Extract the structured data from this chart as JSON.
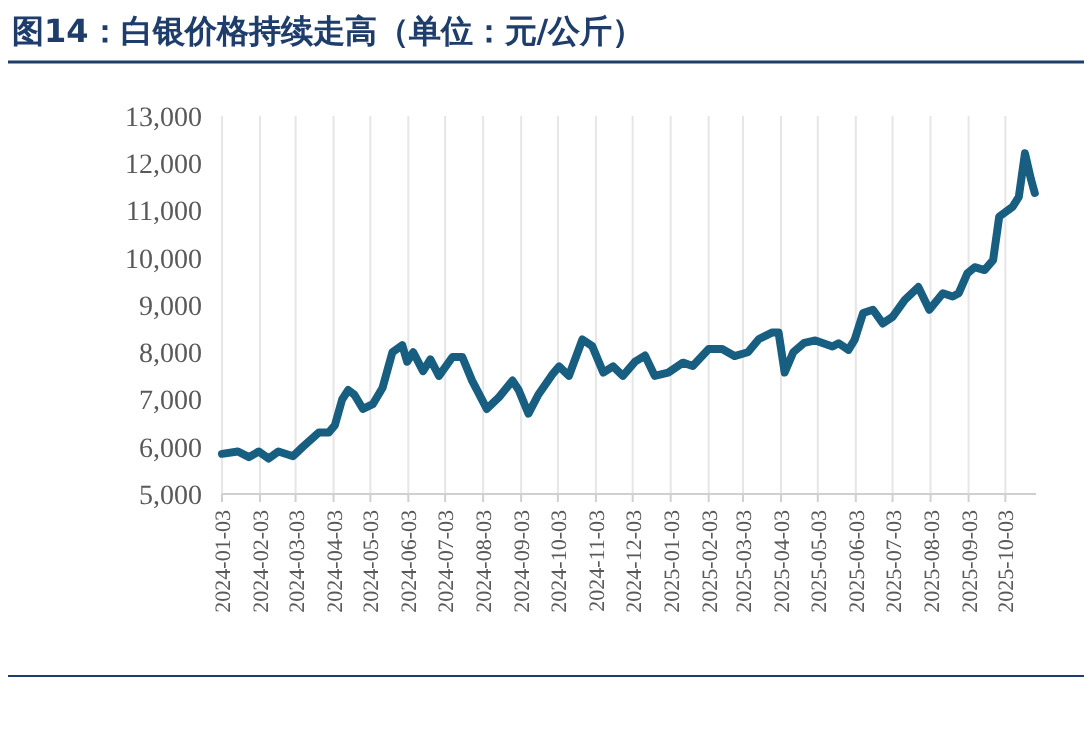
{
  "chart_data": {
    "type": "line",
    "title": "图14：白银价格持续走高（单位：元/公斤）",
    "x": [
      "2024-01-03",
      "2024-01-16",
      "2024-01-25",
      "2024-02-02",
      "2024-02-10",
      "2024-02-18",
      "2024-03-01",
      "2024-03-09",
      "2024-03-22",
      "2024-03-30",
      "2024-04-04",
      "2024-04-10",
      "2024-04-15",
      "2024-04-20",
      "2024-04-27",
      "2024-05-05",
      "2024-05-13",
      "2024-05-21",
      "2024-05-29",
      "2024-06-02",
      "2024-06-07",
      "2024-06-15",
      "2024-06-21",
      "2024-06-28",
      "2024-07-09",
      "2024-07-17",
      "2024-07-25",
      "2024-07-30",
      "2024-08-06",
      "2024-08-16",
      "2024-08-27",
      "2024-09-01",
      "2024-09-09",
      "2024-09-17",
      "2024-09-29",
      "2024-10-04",
      "2024-10-12",
      "2024-10-23",
      "2024-10-31",
      "2024-11-09",
      "2024-11-17",
      "2024-11-25",
      "2024-12-05",
      "2024-12-13",
      "2024-12-21",
      "2025-01-01",
      "2025-01-13",
      "2025-01-21",
      "2025-02-03",
      "2025-02-14",
      "2025-02-24",
      "2025-03-07",
      "2025-03-16",
      "2025-03-27",
      "2025-04-01",
      "2025-04-06",
      "2025-04-13",
      "2025-04-22",
      "2025-05-01",
      "2025-05-15",
      "2025-05-20",
      "2025-05-28",
      "2025-06-02",
      "2025-06-09",
      "2025-06-17",
      "2025-06-25",
      "2025-07-03",
      "2025-07-13",
      "2025-07-24",
      "2025-08-02",
      "2025-08-13",
      "2025-08-21",
      "2025-08-26",
      "2025-09-02",
      "2025-09-08",
      "2025-09-16",
      "2025-09-23",
      "2025-09-28",
      "2025-10-09",
      "2025-10-14",
      "2025-10-19",
      "2025-10-24",
      "2025-10-27"
    ],
    "series": [
      {
        "color": "#175e80",
        "values": [
          5850,
          5900,
          5780,
          5900,
          5750,
          5900,
          5800,
          6000,
          6300,
          6300,
          6450,
          7000,
          7200,
          7100,
          6800,
          6900,
          7250,
          8000,
          8150,
          7800,
          8000,
          7600,
          7850,
          7500,
          7900,
          7900,
          7400,
          7150,
          6800,
          7050,
          7400,
          7200,
          6700,
          7100,
          7550,
          7700,
          7500,
          8270,
          8130,
          7570,
          7700,
          7500,
          7800,
          7930,
          7500,
          7570,
          7780,
          7710,
          8070,
          8070,
          7920,
          8000,
          8280,
          8420,
          8420,
          7570,
          8000,
          8200,
          8250,
          8120,
          8190,
          8050,
          8260,
          8830,
          8900,
          8610,
          8750,
          9110,
          9380,
          8900,
          9250,
          9180,
          9250,
          9670,
          9800,
          9740,
          9950,
          10870,
          11080,
          11290,
          12210,
          11650,
          11370
        ]
      }
    ],
    "xlim": [
      "2024-01-03",
      "2025-10-28"
    ],
    "xticks": [
      "2024-01-03",
      "2024-02-03",
      "2024-03-03",
      "2024-04-03",
      "2024-05-03",
      "2024-06-03",
      "2024-07-03",
      "2024-08-03",
      "2024-09-03",
      "2024-10-03",
      "2024-11-03",
      "2024-12-03",
      "2025-01-03",
      "2025-02-03",
      "2025-03-03",
      "2025-04-03",
      "2025-05-03",
      "2025-06-03",
      "2025-07-03",
      "2025-08-03",
      "2025-09-03",
      "2025-10-03"
    ],
    "ylim": [
      5000,
      13000
    ],
    "yticks": [
      {
        "value": 5000,
        "label": "5,000"
      },
      {
        "value": 6000,
        "label": "6,000"
      },
      {
        "value": 7000,
        "label": "7,000"
      },
      {
        "value": 8000,
        "label": "8,000"
      },
      {
        "value": 9000,
        "label": "9,000"
      },
      {
        "value": 10000,
        "label": "10,000"
      },
      {
        "value": 11000,
        "label": "11,000"
      },
      {
        "value": 12000,
        "label": "12,000"
      },
      {
        "value": 13000,
        "label": "13,000"
      }
    ],
    "grid": "x",
    "marker": "none",
    "line_style": "solid"
  }
}
